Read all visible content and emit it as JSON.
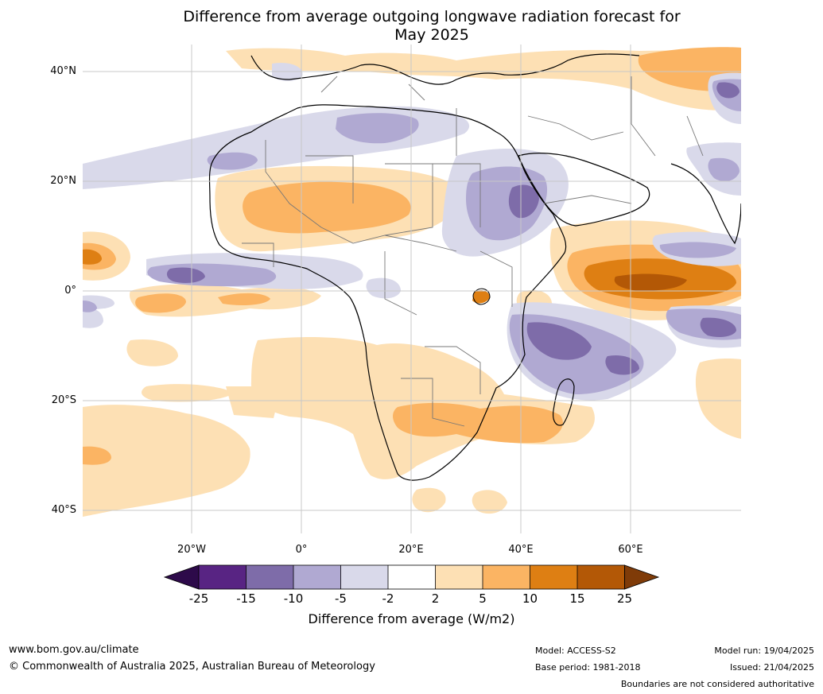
{
  "title_line1": "Difference from average outgoing longwave radiation forecast for",
  "title_line2": "May 2025",
  "lat_labels": [
    "40°N",
    "20°N",
    "0°",
    "20°S",
    "40°S"
  ],
  "lon_labels": [
    "20°W",
    "0°",
    "20°E",
    "40°E",
    "60°E"
  ],
  "colorbar": {
    "ticks": [
      "-25",
      "-15",
      "-10",
      "-5",
      "-2",
      "2",
      "5",
      "10",
      "15",
      "25"
    ],
    "label": "Difference from average (W/m2)",
    "colors": {
      "lt_minus25": "#2d0a4a",
      "minus25_minus15": "#582483",
      "minus15_minus10": "#7e6ca9",
      "minus10_minus5": "#b0a9d2",
      "minus5_minus2": "#d9d9ea",
      "minus2_2": "#ffffff",
      "2_5": "#fde0b4",
      "5_10": "#fbb463",
      "10_15": "#de7f13",
      "15_25": "#b35806",
      "gt_25": "#7f3b08"
    }
  },
  "footer": {
    "website": "www.bom.gov.au/climate",
    "copyright": "© Commonwealth of Australia 2025, Australian Bureau of Meteorology",
    "model": "Model: ACCESS-S2",
    "base_period": "Base period: 1981-2018",
    "model_run": "Model run: 19/04/2025",
    "issued": "Issued: 21/04/2025",
    "boundaries": "Boundaries are not considered authoritative"
  }
}
